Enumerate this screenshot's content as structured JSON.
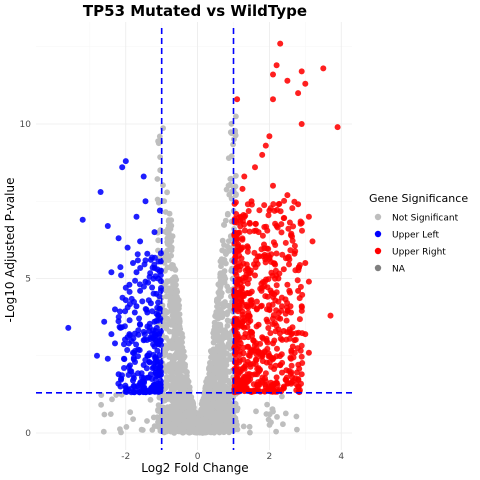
{
  "chart_data": {
    "type": "scatter",
    "title": "TP53 Mutated vs WildType",
    "xlabel": "Log2 Fold Change",
    "ylabel": "-Log10 Adjusted P-value",
    "xlim": [
      -4.5,
      4.3
    ],
    "ylim": [
      -0.55,
      13.3
    ],
    "x_ticks": [
      -2,
      0,
      2,
      4
    ],
    "y_ticks": [
      0,
      5,
      10
    ],
    "x_tick_labels": [
      "-2",
      "0",
      "2",
      "4"
    ],
    "y_tick_labels": [
      "0",
      "5",
      "10"
    ],
    "grid": true,
    "thresholds": {
      "vertical": [
        -1,
        1
      ],
      "horizontal": 1.3
    },
    "colors": {
      "Not Significant": "#bebebe",
      "Upper Left": "#0000ff",
      "Upper Right": "#ff0000",
      "NA": "#7f7f7f",
      "threshold_line": "#0000ff"
    },
    "legend": {
      "title": "Gene Significance",
      "position": "right",
      "entries": [
        "Not Significant",
        "Upper Left",
        "Upper Right",
        "NA"
      ]
    },
    "series": [
      {
        "name": "Upper Left",
        "points": [
          [
            -3.6,
            3.4
          ],
          [
            -3.2,
            6.9
          ],
          [
            -2.8,
            2.5
          ],
          [
            -2.7,
            7.8
          ],
          [
            -2.6,
            3.6
          ],
          [
            -2.5,
            6.7
          ],
          [
            -2.5,
            2.4
          ],
          [
            -2.4,
            5.2
          ],
          [
            -2.3,
            4.0
          ],
          [
            -2.2,
            1.9
          ],
          [
            -2.2,
            6.3
          ],
          [
            -2.1,
            8.6
          ],
          [
            -2.0,
            8.8
          ],
          [
            -2.0,
            4.3
          ],
          [
            -1.95,
            6.0
          ],
          [
            -1.9,
            3.2
          ],
          [
            -1.8,
            5.5
          ],
          [
            -1.8,
            2.6
          ],
          [
            -1.7,
            7.0
          ],
          [
            -1.6,
            4.6
          ],
          [
            -1.5,
            8.3
          ],
          [
            -1.5,
            3.0
          ],
          [
            -1.45,
            7.5
          ],
          [
            -1.4,
            5.8
          ],
          [
            -1.35,
            2.3
          ],
          [
            -1.3,
            4.2
          ],
          [
            -1.2,
            6.5
          ],
          [
            -1.2,
            3.6
          ],
          [
            -1.1,
            5.0
          ],
          [
            -1.05,
            7.2
          ],
          [
            -2.3,
            2.9
          ],
          [
            -2.15,
            3.4
          ],
          [
            -1.85,
            2.0
          ],
          [
            -1.75,
            3.9
          ],
          [
            -1.65,
            2.7
          ],
          [
            -1.55,
            1.8
          ],
          [
            -1.45,
            4.9
          ],
          [
            -1.35,
            3.3
          ],
          [
            -1.25,
            2.1
          ],
          [
            -1.15,
            4.5
          ],
          [
            -1.1,
            1.6
          ],
          [
            -1.05,
            3.0
          ],
          [
            -1.9,
            4.8
          ],
          [
            -1.7,
            5.2
          ],
          [
            -1.6,
            3.5
          ],
          [
            -1.4,
            2.5
          ],
          [
            -1.3,
            5.6
          ],
          [
            -1.2,
            2.8
          ],
          [
            -1.1,
            3.8
          ],
          [
            -2.05,
            2.4
          ],
          [
            -1.95,
            3.1
          ],
          [
            -1.8,
            1.7
          ],
          [
            -1.5,
            2.2
          ],
          [
            -1.25,
            1.5
          ],
          [
            -1.15,
            2.4
          ],
          [
            -1.6,
            6.2
          ],
          [
            -2.4,
            3.2
          ],
          [
            -1.7,
            4.1
          ],
          [
            -1.4,
            3.9
          ],
          [
            -1.3,
            1.9
          ]
        ]
      },
      {
        "name": "Upper Right",
        "points": [
          [
            2.3,
            12.6
          ],
          [
            2.2,
            11.9
          ],
          [
            2.5,
            11.4
          ],
          [
            2.1,
            11.6
          ],
          [
            2.9,
            11.7
          ],
          [
            3.5,
            11.8
          ],
          [
            2.8,
            11.0
          ],
          [
            3.0,
            11.3
          ],
          [
            2.1,
            10.8
          ],
          [
            1.1,
            10.8
          ],
          [
            3.9,
            9.9
          ],
          [
            2.9,
            10.0
          ],
          [
            2.0,
            9.6
          ],
          [
            1.9,
            9.3
          ],
          [
            1.8,
            9.0
          ],
          [
            1.6,
            8.6
          ],
          [
            1.3,
            8.3
          ],
          [
            2.1,
            8.0
          ],
          [
            2.5,
            7.7
          ],
          [
            2.8,
            7.4
          ],
          [
            3.1,
            7.0
          ],
          [
            2.0,
            7.2
          ],
          [
            1.5,
            7.5
          ],
          [
            1.2,
            7.0
          ],
          [
            2.9,
            6.8
          ],
          [
            3.2,
            6.2
          ],
          [
            2.6,
            6.4
          ],
          [
            2.2,
            6.7
          ],
          [
            1.7,
            6.5
          ],
          [
            1.4,
            6.0
          ],
          [
            1.1,
            6.3
          ],
          [
            3.0,
            5.5
          ],
          [
            2.7,
            5.8
          ],
          [
            2.4,
            5.3
          ],
          [
            1.9,
            5.7
          ],
          [
            1.6,
            5.1
          ],
          [
            1.2,
            5.4
          ],
          [
            3.1,
            4.9
          ],
          [
            2.8,
            4.6
          ],
          [
            2.5,
            4.8
          ],
          [
            2.1,
            4.4
          ],
          [
            1.8,
            4.7
          ],
          [
            1.5,
            4.3
          ],
          [
            1.2,
            4.5
          ],
          [
            3.7,
            3.8
          ],
          [
            2.9,
            4.1
          ],
          [
            2.6,
            3.9
          ],
          [
            2.3,
            3.7
          ],
          [
            2.0,
            4.0
          ],
          [
            1.7,
            3.5
          ],
          [
            1.4,
            3.8
          ],
          [
            1.1,
            3.4
          ],
          [
            3.0,
            3.2
          ],
          [
            2.7,
            3.0
          ],
          [
            2.4,
            3.3
          ],
          [
            2.1,
            2.9
          ],
          [
            1.8,
            3.1
          ],
          [
            1.5,
            2.7
          ],
          [
            1.2,
            2.9
          ],
          [
            3.1,
            2.6
          ],
          [
            2.9,
            1.9
          ],
          [
            2.6,
            2.4
          ],
          [
            2.3,
            2.2
          ],
          [
            2.0,
            2.5
          ],
          [
            1.7,
            2.1
          ],
          [
            1.4,
            2.3
          ],
          [
            1.1,
            2.0
          ],
          [
            2.5,
            1.6
          ],
          [
            2.2,
            1.8
          ],
          [
            1.9,
            1.5
          ],
          [
            1.6,
            1.9
          ],
          [
            1.3,
            1.6
          ],
          [
            1.05,
            1.4
          ],
          [
            2.8,
            1.5
          ],
          [
            2.1,
            1.4
          ],
          [
            1.35,
            1.45
          ],
          [
            2.4,
            1.5
          ],
          [
            1.15,
            5.9
          ],
          [
            1.45,
            6.8
          ],
          [
            1.25,
            7.9
          ],
          [
            1.85,
            6.1
          ],
          [
            2.35,
            4.1
          ],
          [
            1.55,
            3.0
          ],
          [
            1.95,
            3.6
          ],
          [
            2.25,
            5.0
          ],
          [
            1.65,
            4.0
          ],
          [
            1.3,
            3.1
          ],
          [
            1.05,
            2.6
          ],
          [
            1.15,
            1.7
          ],
          [
            1.75,
            2.6
          ],
          [
            2.65,
            2.8
          ]
        ]
      }
    ]
  }
}
